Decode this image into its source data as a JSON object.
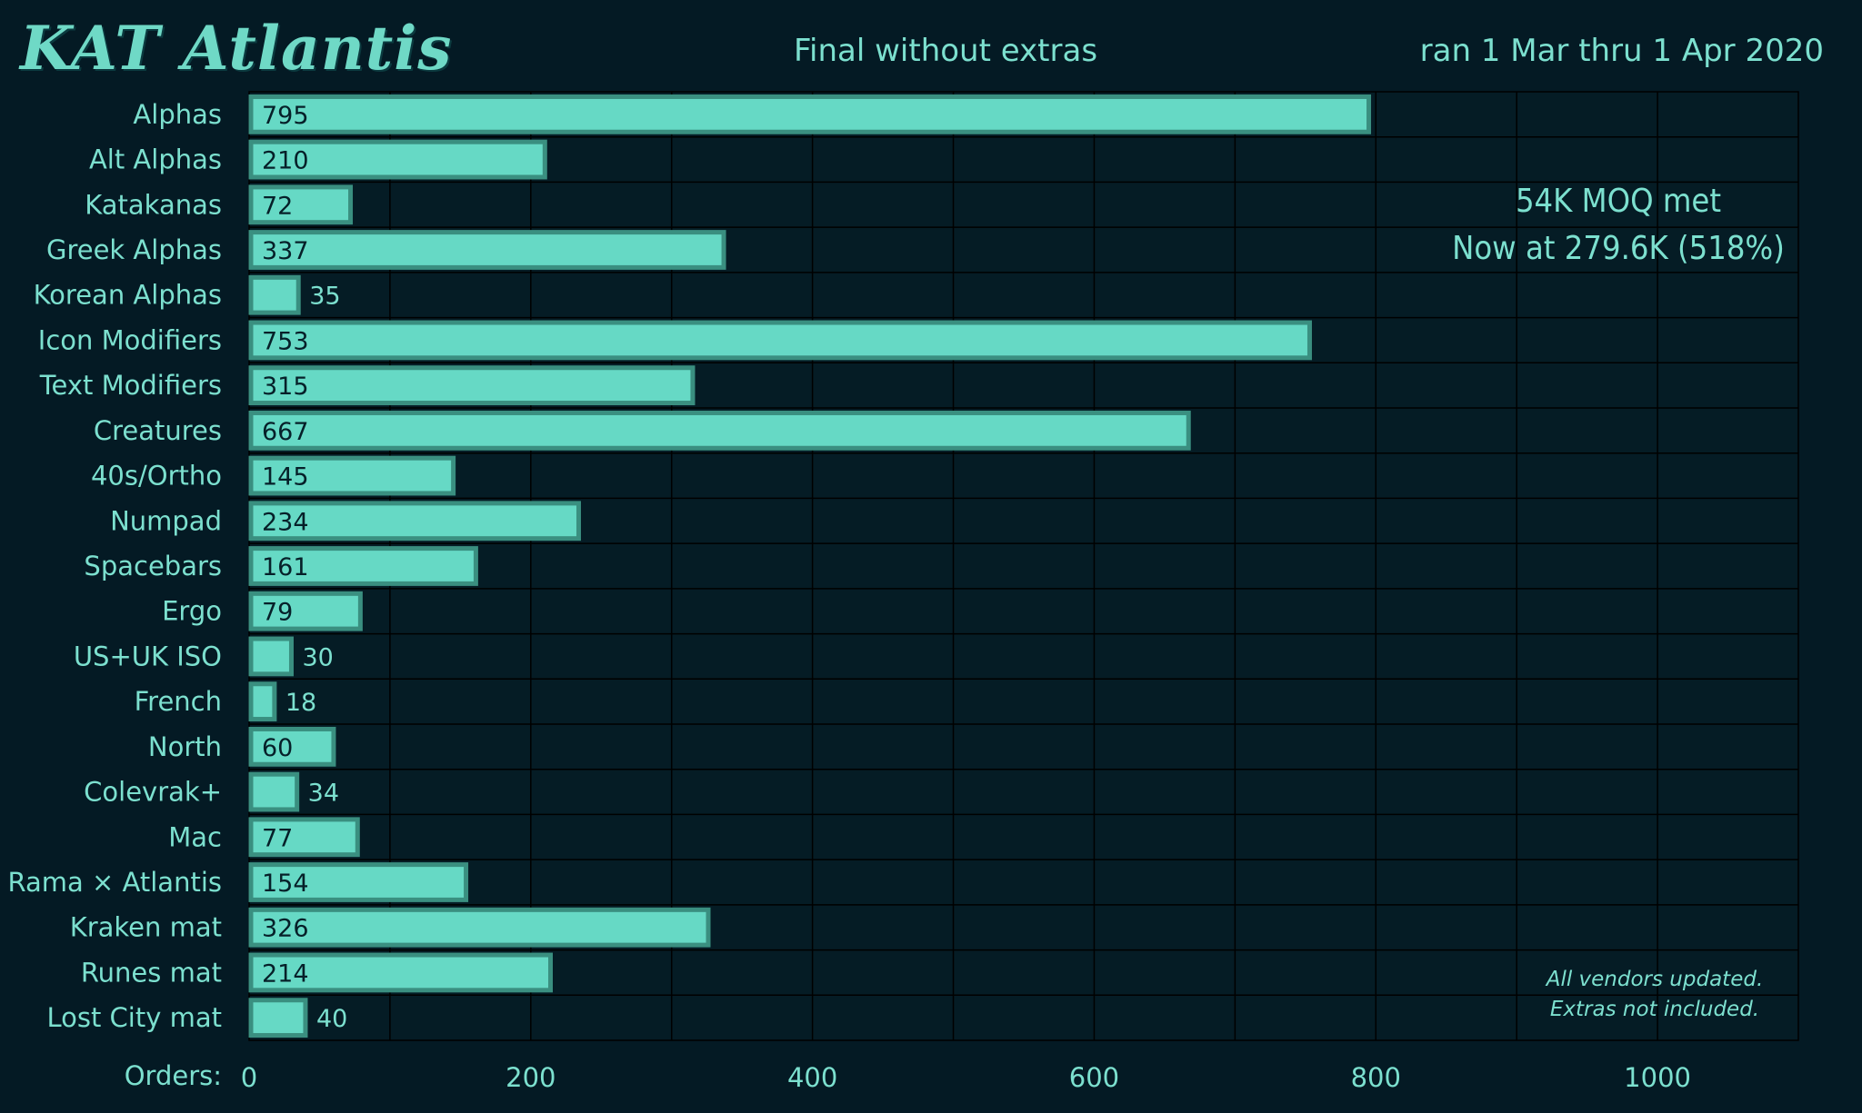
{
  "header": {
    "brand": "KAT Atlantis",
    "title": "Final without extras",
    "date_range": "ran 1 Mar thru 1 Apr 2020"
  },
  "annotations": {
    "moq_line1": "54K MOQ met",
    "moq_line2": "Now at 279.6K (518%)",
    "note_line1": "All vendors updated.",
    "note_line2": "Extras not included."
  },
  "colors": {
    "background": "#041a24",
    "plot_background": "#051c25",
    "bar_fill": "#66d9c5",
    "bar_border": "#3a8f80",
    "grid": "#000000",
    "text": "#7ce0cf"
  },
  "chart_data": {
    "type": "bar",
    "orientation": "horizontal",
    "title": "Final without extras",
    "xlabel": "Orders:",
    "ylabel": "",
    "xlim": [
      0,
      1100
    ],
    "xticks": [
      0,
      200,
      400,
      600,
      800,
      1000
    ],
    "grid": true,
    "categories": [
      "Alphas",
      "Alt Alphas",
      "Katakanas",
      "Greek Alphas",
      "Korean Alphas",
      "Icon Modifiers",
      "Text Modifiers",
      "Creatures",
      "40s/Ortho",
      "Numpad",
      "Spacebars",
      "Ergo",
      "US+UK ISO",
      "French",
      "North",
      "Colevrak+",
      "Mac",
      "Rama × Atlantis",
      "Kraken mat",
      "Runes mat",
      "Lost City mat"
    ],
    "values": [
      795,
      210,
      72,
      337,
      35,
      753,
      315,
      667,
      145,
      234,
      161,
      79,
      30,
      18,
      60,
      34,
      77,
      154,
      326,
      214,
      40
    ]
  }
}
